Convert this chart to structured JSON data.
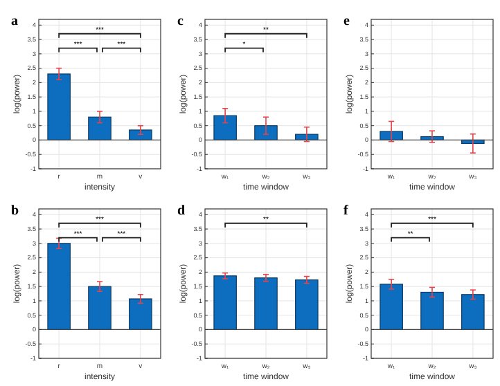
{
  "chart_data": [
    {
      "type": "bar",
      "title": "a",
      "xlabel": "intensity",
      "ylabel": "log(power)",
      "categories": [
        "r",
        "m",
        "v"
      ],
      "values": [
        2.3,
        0.8,
        0.35
      ],
      "errors": [
        0.2,
        0.2,
        0.15
      ],
      "color": "#0d6ebf",
      "ylim": [
        -1,
        4.2
      ],
      "yticks": [
        -1,
        -0.5,
        0,
        0.5,
        1,
        1.5,
        2,
        2.5,
        3,
        3.5,
        4
      ],
      "grid": true,
      "annotations": [
        "***",
        "***",
        "***"
      ]
    },
    {
      "type": "bar",
      "title": "c",
      "xlabel": "time window",
      "ylabel": "log(power)",
      "categories": [
        "w₁",
        "w₂",
        "w₃"
      ],
      "values": [
        0.85,
        0.5,
        0.2
      ],
      "errors": [
        0.25,
        0.3,
        0.25
      ],
      "color": "#0d6ebf",
      "ylim": [
        -1,
        4.2
      ],
      "yticks": [
        -1,
        -0.5,
        0,
        0.5,
        1,
        1.5,
        2,
        2.5,
        3,
        3.5,
        4
      ],
      "grid": true,
      "annotations": [
        "**",
        "*"
      ]
    },
    {
      "type": "bar",
      "title": "e",
      "xlabel": "time window",
      "ylabel": "log(power)",
      "categories": [
        "w₁",
        "w₂",
        "w₃"
      ],
      "values": [
        0.3,
        0.12,
        -0.12
      ],
      "errors": [
        0.35,
        0.2,
        0.33
      ],
      "color": "#0d6ebf",
      "ylim": [
        -1,
        4.2
      ],
      "yticks": [
        -1,
        -0.5,
        0,
        0.5,
        1,
        1.5,
        2,
        2.5,
        3,
        3.5,
        4
      ],
      "grid": true
    },
    {
      "type": "bar",
      "title": "b",
      "xlabel": "intensity",
      "ylabel": "log(power)",
      "categories": [
        "r",
        "m",
        "v"
      ],
      "values": [
        3.0,
        1.5,
        1.07
      ],
      "errors": [
        0.18,
        0.17,
        0.15
      ],
      "color": "#0d6ebf",
      "ylim": [
        -1,
        4.2
      ],
      "yticks": [
        -1,
        -0.5,
        0,
        0.5,
        1,
        1.5,
        2,
        2.5,
        3,
        3.5,
        4
      ],
      "grid": true,
      "annotations": [
        "***",
        "***",
        "***"
      ]
    },
    {
      "type": "bar",
      "title": "d",
      "xlabel": "time window",
      "ylabel": "log(power)",
      "categories": [
        "w₁",
        "w₂",
        "w₃"
      ],
      "values": [
        1.87,
        1.8,
        1.73
      ],
      "errors": [
        0.1,
        0.12,
        0.12
      ],
      "color": "#0d6ebf",
      "ylim": [
        -1,
        4.2
      ],
      "yticks": [
        -1,
        -0.5,
        0,
        0.5,
        1,
        1.5,
        2,
        2.5,
        3,
        3.5,
        4
      ],
      "grid": true,
      "annotations": [
        "**"
      ]
    },
    {
      "type": "bar",
      "title": "f",
      "xlabel": "time window",
      "ylabel": "log(power)",
      "categories": [
        "w₁",
        "w₂",
        "w₃"
      ],
      "values": [
        1.58,
        1.3,
        1.22
      ],
      "errors": [
        0.17,
        0.17,
        0.16
      ],
      "color": "#0d6ebf",
      "ylim": [
        -1,
        4.2
      ],
      "yticks": [
        -1,
        -0.5,
        0,
        0.5,
        1,
        1.5,
        2,
        2.5,
        3,
        3.5,
        4
      ],
      "grid": true,
      "annotations": [
        "***",
        "**"
      ]
    }
  ]
}
